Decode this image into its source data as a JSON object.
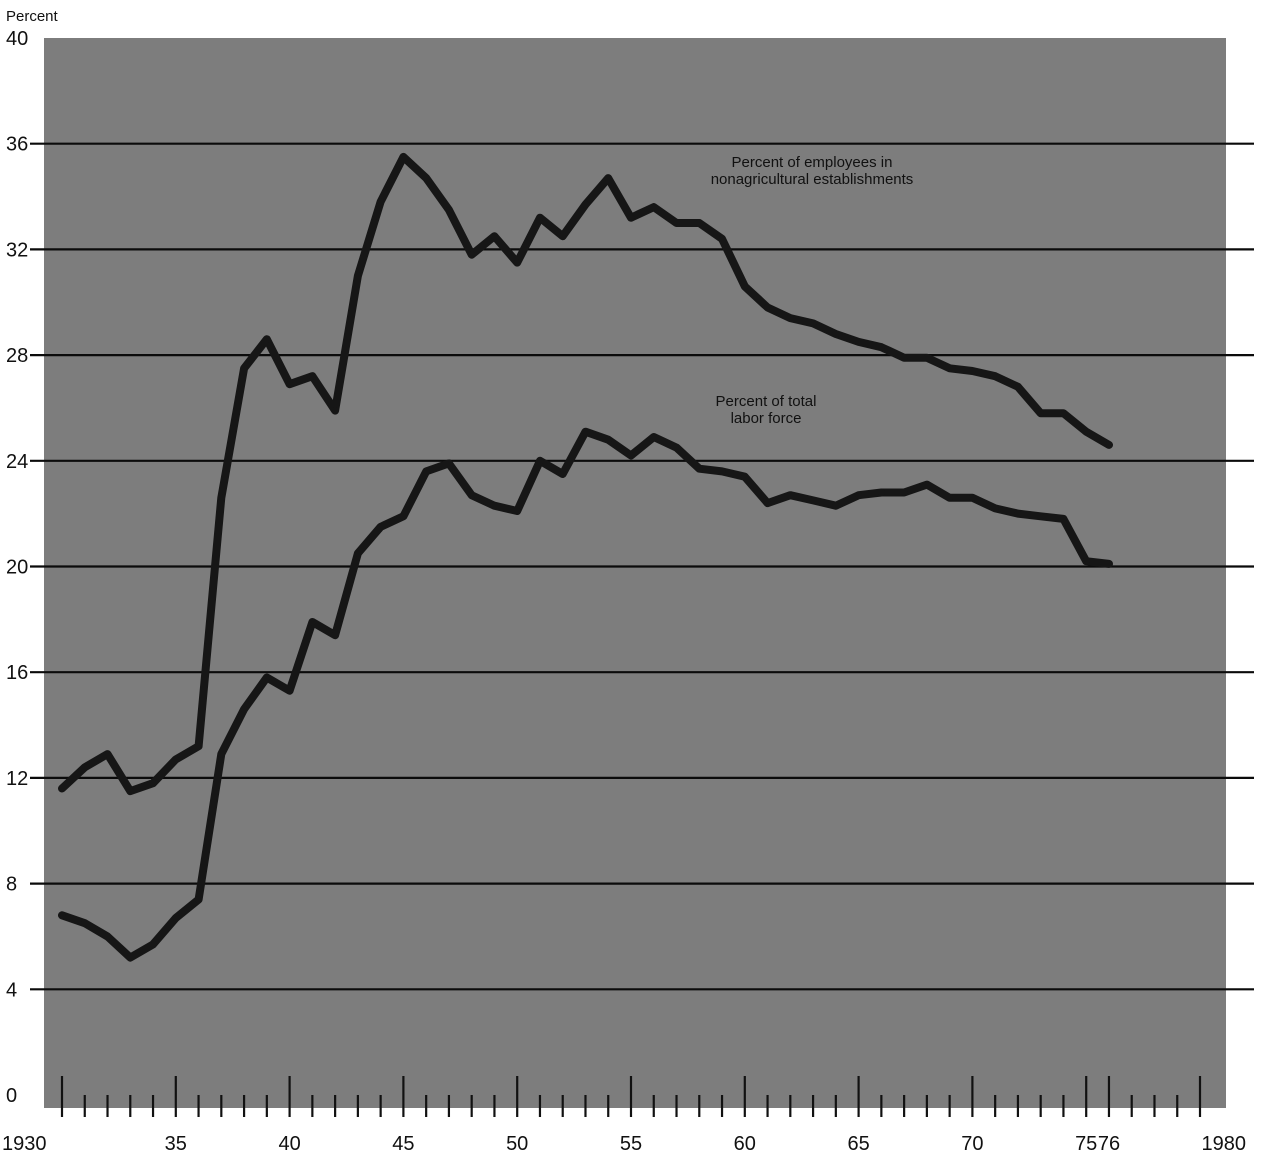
{
  "chart_data": {
    "type": "line",
    "ylabel": "Percent",
    "ylim": [
      0,
      40
    ],
    "xlim": [
      1930,
      1980
    ],
    "y_ticks": [
      "0",
      "4",
      "8",
      "12",
      "16",
      "20",
      "24",
      "28",
      "32",
      "36",
      "40"
    ],
    "x_tick_labels": [
      {
        "x": 1930,
        "label": "1930"
      },
      {
        "x": 1935,
        "label": "35"
      },
      {
        "x": 1940,
        "label": "40"
      },
      {
        "x": 1945,
        "label": "45"
      },
      {
        "x": 1950,
        "label": "50"
      },
      {
        "x": 1955,
        "label": "55"
      },
      {
        "x": 1960,
        "label": "60"
      },
      {
        "x": 1965,
        "label": "65"
      },
      {
        "x": 1970,
        "label": "70"
      },
      {
        "x": 1975,
        "label": "75"
      },
      {
        "x": 1976,
        "label": "76"
      },
      {
        "x": 1980,
        "label": "1980"
      }
    ],
    "grid": "horizontal",
    "background_color": "#7d7d7d",
    "line_color": "#161616",
    "series": [
      {
        "name": "Percent of employees in nonagricultural establishments",
        "x": [
          1930,
          1931,
          1932,
          1933,
          1934,
          1935,
          1936,
          1937,
          1938,
          1939,
          1940,
          1941,
          1942,
          1943,
          1944,
          1945,
          1946,
          1947,
          1948,
          1949,
          1950,
          1951,
          1952,
          1953,
          1954,
          1955,
          1956,
          1957,
          1958,
          1959,
          1960,
          1961,
          1962,
          1963,
          1964,
          1965,
          1966,
          1967,
          1968,
          1969,
          1970,
          1971,
          1972,
          1973,
          1974,
          1975,
          1976
        ],
        "values": [
          11.6,
          12.4,
          12.9,
          11.5,
          11.8,
          12.7,
          13.2,
          22.6,
          27.5,
          28.6,
          26.9,
          27.2,
          25.9,
          31.0,
          33.8,
          35.5,
          34.7,
          33.5,
          31.8,
          32.5,
          31.5,
          33.2,
          32.5,
          33.7,
          34.7,
          33.2,
          33.6,
          33.0,
          33.0,
          32.4,
          30.6,
          29.8,
          29.4,
          29.2,
          28.8,
          28.5,
          28.3,
          27.9,
          27.9,
          27.5,
          27.4,
          27.2,
          26.8,
          25.8,
          25.8,
          25.1,
          24.6
        ]
      },
      {
        "name": "Percent of total labor force",
        "x": [
          1930,
          1931,
          1932,
          1933,
          1934,
          1935,
          1936,
          1937,
          1938,
          1939,
          1940,
          1941,
          1942,
          1943,
          1944,
          1945,
          1946,
          1947,
          1948,
          1949,
          1950,
          1951,
          1952,
          1953,
          1954,
          1955,
          1956,
          1957,
          1958,
          1959,
          1960,
          1961,
          1962,
          1963,
          1964,
          1965,
          1966,
          1967,
          1968,
          1969,
          1970,
          1971,
          1972,
          1973,
          1974,
          1975,
          1976
        ],
        "values": [
          6.8,
          6.5,
          6.0,
          5.2,
          5.7,
          6.7,
          7.4,
          12.9,
          14.6,
          15.8,
          15.3,
          17.9,
          17.4,
          20.5,
          21.5,
          21.9,
          23.6,
          23.9,
          22.7,
          22.3,
          22.1,
          24.0,
          23.5,
          25.1,
          24.8,
          24.2,
          24.9,
          24.5,
          23.7,
          23.6,
          23.4,
          22.4,
          22.7,
          22.5,
          22.3,
          22.7,
          22.8,
          22.8,
          23.1,
          22.6,
          22.6,
          22.2,
          22.0,
          21.9,
          21.8,
          20.2,
          20.1
        ]
      }
    ],
    "annotations": [
      {
        "series": 0,
        "lines": [
          "Percent of employees in",
          "nonagricultural establishments"
        ]
      },
      {
        "series": 1,
        "lines": [
          "Percent of total",
          "labor force"
        ]
      }
    ]
  }
}
